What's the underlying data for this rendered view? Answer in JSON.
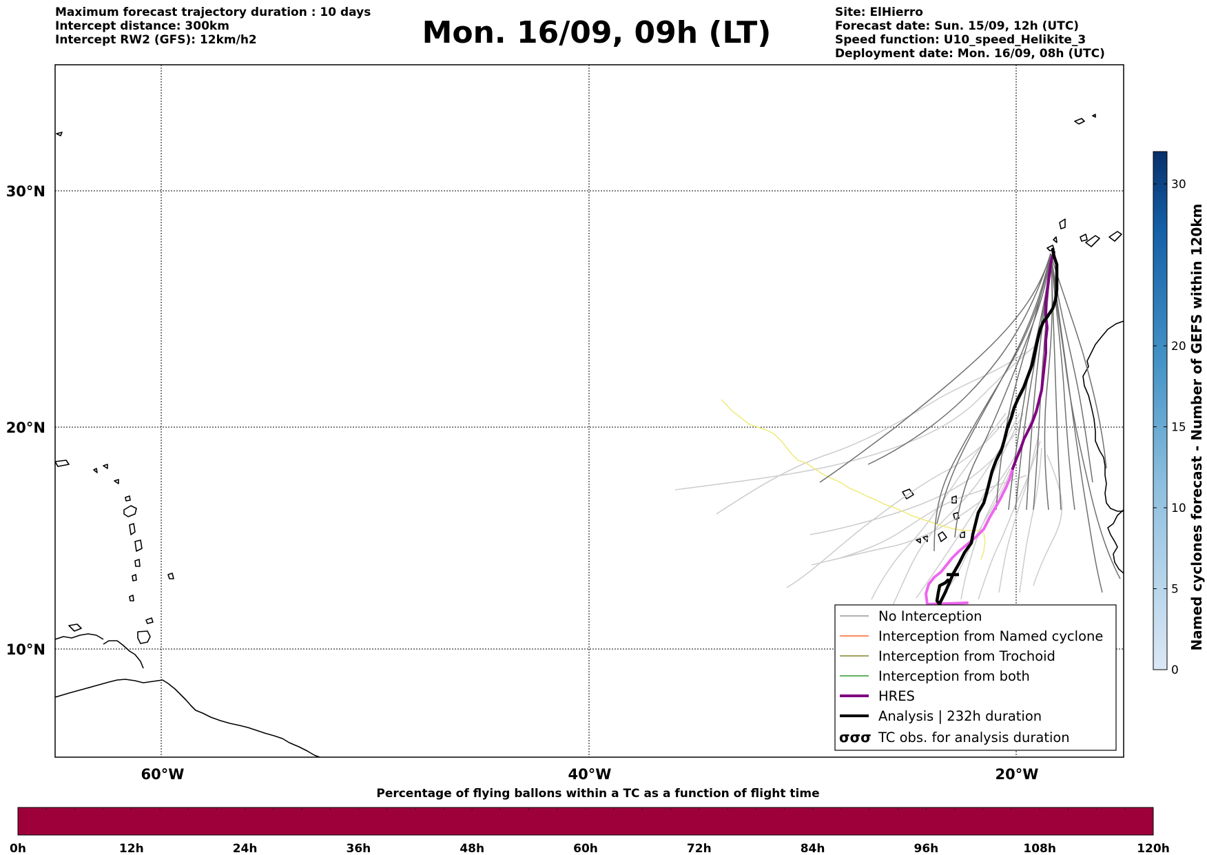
{
  "header": {
    "left": [
      "Maximum forecast trajectory duration : 10 days",
      "Intercept distance: 300km",
      "Intercept RW2 (GFS):  12km/h2"
    ],
    "title": "Mon. 16/09, 09h (LT)",
    "right": [
      "Site: ElHierro",
      "Forecast date: Sun. 15/09, 12h (UTC)",
      "Speed function: U10_speed_Helikite_3",
      "Deployment date: Mon. 16/09, 08h (UTC)"
    ]
  },
  "map": {
    "lat_labels": [
      "30°N",
      "20°N",
      "10°N"
    ],
    "lon_labels": [
      "60°W",
      "40°W",
      "20°W"
    ],
    "legend": [
      {
        "label": "No Interception",
        "color": "#808080"
      },
      {
        "label": "Interception from Named cyclone",
        "color": "#ff4500"
      },
      {
        "label": "Interception from Trochoid",
        "color": "#6b6b00"
      },
      {
        "label": "Interception from both",
        "color": "#008000"
      },
      {
        "label": "HRES",
        "color": "#800080"
      },
      {
        "label": "Analysis | 232h duration",
        "color": "#000000"
      },
      {
        "label": "TC obs. for analysis duration",
        "color": "#000000",
        "symbol": "σσσ"
      }
    ]
  },
  "colorbar_right": {
    "label": "Named cyclones forecast - Number of GEFS within 120km",
    "ticks": [
      "0",
      "5",
      "10",
      "15",
      "20",
      "30"
    ],
    "tick_values": [
      0,
      5,
      10,
      15,
      20,
      30
    ],
    "range": [
      0,
      32
    ],
    "color_low": "#dbe8f6",
    "color_high": "#08306b"
  },
  "colorbar_bottom": {
    "title": "Percentage of flying ballons within a TC as a function of flight time",
    "ticks": [
      "0h",
      "12h",
      "24h",
      "36h",
      "48h",
      "60h",
      "72h",
      "84h",
      "96h",
      "108h",
      "120h"
    ],
    "fill_color": "#9e003a"
  }
}
